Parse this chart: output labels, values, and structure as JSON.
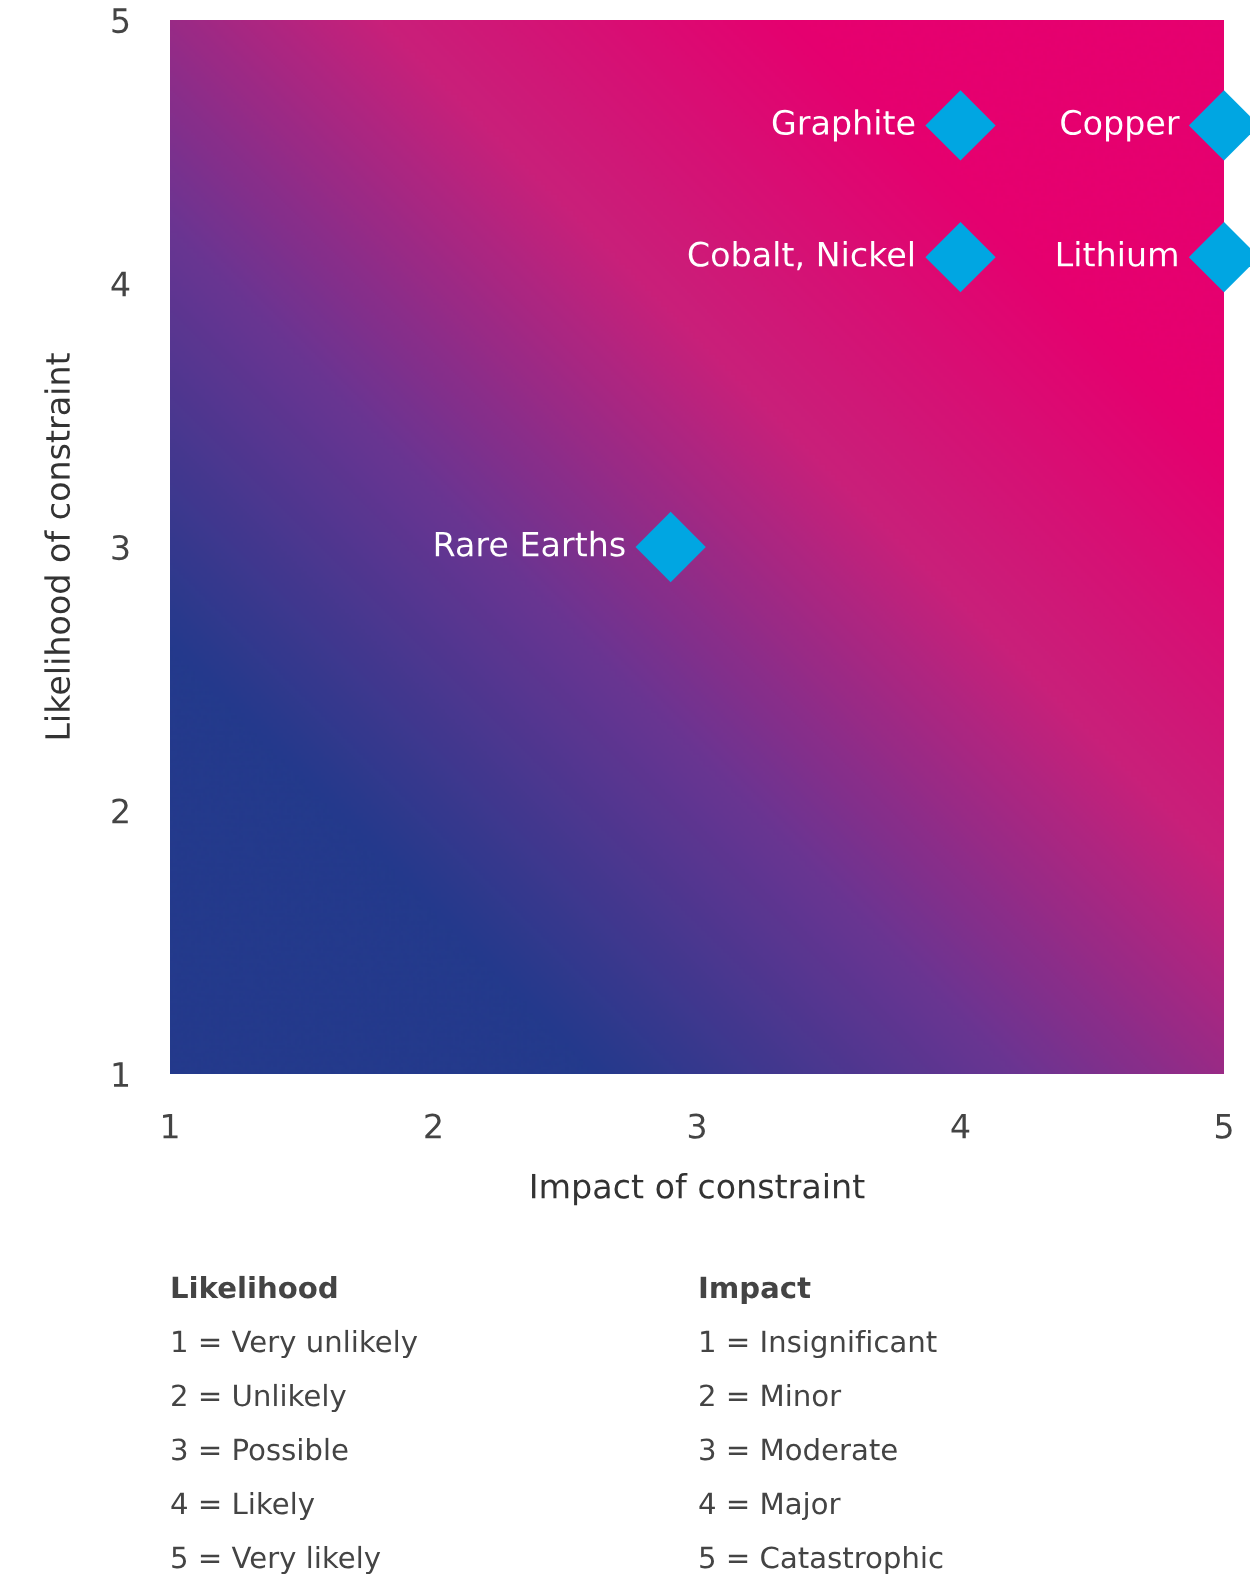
{
  "chart_data": {
    "type": "scatter",
    "xlabel": "Impact of constraint",
    "ylabel": "Likelihood of constraint",
    "marker": "diamond",
    "grid": false,
    "legend": false,
    "xlim": [
      1,
      5
    ],
    "ylim": [
      1,
      5
    ],
    "xticks": [
      1,
      2,
      3,
      4,
      5
    ],
    "yticks": [
      1,
      2,
      3,
      4,
      5
    ],
    "series": [
      {
        "name": "Graphite",
        "color": "#00a6e2",
        "x": [
          4
        ],
        "values": [
          4.6
        ]
      },
      {
        "name": "Copper",
        "color": "#00a6e2",
        "x": [
          5
        ],
        "values": [
          4.6
        ]
      },
      {
        "name": "Cobalt, Nickel",
        "color": "#00a6e2",
        "x": [
          4
        ],
        "values": [
          4.1
        ]
      },
      {
        "name": "Lithium",
        "color": "#00a6e2",
        "x": [
          5
        ],
        "values": [
          4.1
        ]
      },
      {
        "name": "Rare Earths",
        "color": "#00a6e2",
        "x": [
          2.9
        ],
        "values": [
          3.0
        ]
      }
    ],
    "annotations": [
      "Likelihood",
      "1 = Very unlikely",
      "2 = Unlikely",
      "3 = Possible",
      "4 = Likely",
      "5 = Very likely",
      "Impact",
      "1 = Insignificant",
      "2 = Minor",
      "3 = Moderate",
      "4 = Major",
      "5 = Catastrophic"
    ]
  }
}
